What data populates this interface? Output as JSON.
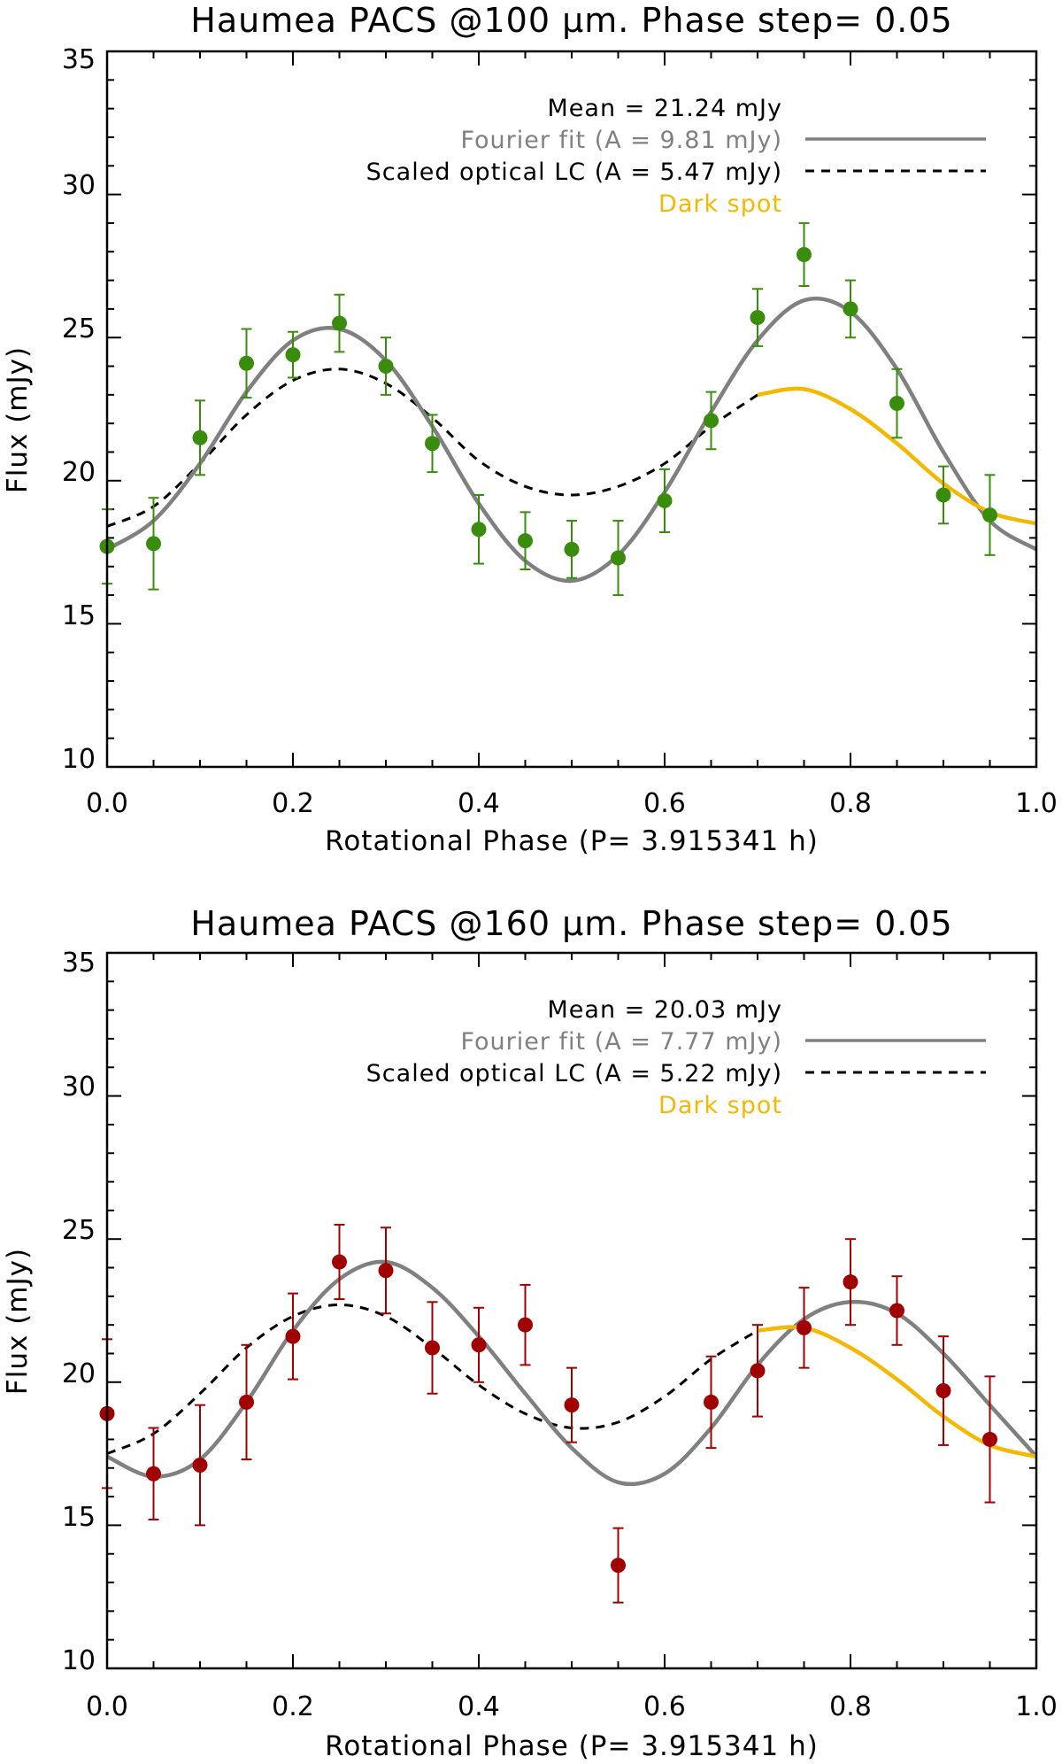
{
  "colors": {
    "axis": "#000000",
    "fourier": "#808080",
    "optical": "#000000",
    "dark_spot": "#f5b800",
    "points_100": "#3a8c0c",
    "points_160": "#a00000"
  },
  "chart_data": [
    {
      "type": "scatter",
      "title": "Haumea PACS @100 μm. Phase step= 0.05",
      "xlabel": "Rotational Phase (P= 3.915341 h)",
      "ylabel": "Flux (mJy)",
      "xlim": [
        0,
        1
      ],
      "ylim": [
        10,
        35
      ],
      "xticks": [
        "0.0",
        "0.2",
        "0.4",
        "0.6",
        "0.8",
        "1.0"
      ],
      "yticks": [
        "10",
        "15",
        "20",
        "25",
        "30",
        "35"
      ],
      "legend": {
        "position": "top-right",
        "mean": "Mean = 21.24 mJy",
        "fourier": "Fourier fit (A = 9.81 mJy)",
        "optical": "Scaled optical LC (A = 5.47 mJy)",
        "dark_spot": "Dark spot"
      },
      "points": {
        "x": [
          0.0,
          0.05,
          0.1,
          0.15,
          0.2,
          0.25,
          0.3,
          0.35,
          0.4,
          0.45,
          0.5,
          0.55,
          0.6,
          0.65,
          0.7,
          0.75,
          0.8,
          0.85,
          0.9,
          0.95
        ],
        "y": [
          17.7,
          17.8,
          21.5,
          24.1,
          24.4,
          25.5,
          24.0,
          21.3,
          18.3,
          17.9,
          17.6,
          17.3,
          19.3,
          22.1,
          25.7,
          27.9,
          26.0,
          22.7,
          19.5,
          18.8
        ],
        "err": [
          1.3,
          1.6,
          1.3,
          1.2,
          0.8,
          1.0,
          1.0,
          1.0,
          1.2,
          1.0,
          1.0,
          1.3,
          1.1,
          1.0,
          1.0,
          1.1,
          1.0,
          1.2,
          1.0,
          1.4
        ]
      },
      "fourier_fit": {
        "x": [
          0.0,
          0.05,
          0.1,
          0.15,
          0.2,
          0.25,
          0.3,
          0.35,
          0.4,
          0.45,
          0.5,
          0.55,
          0.6,
          0.65,
          0.7,
          0.75,
          0.8,
          0.85,
          0.9,
          0.95,
          1.0
        ],
        "y": [
          17.6,
          18.6,
          20.6,
          23.1,
          24.9,
          25.3,
          24.2,
          21.9,
          19.2,
          17.2,
          16.5,
          17.4,
          19.6,
          22.4,
          24.9,
          26.3,
          25.9,
          23.9,
          21.0,
          18.6,
          17.6
        ]
      },
      "optical_lc": {
        "x": [
          0.0,
          0.05,
          0.1,
          0.15,
          0.2,
          0.25,
          0.3,
          0.35,
          0.4,
          0.45,
          0.5,
          0.55,
          0.6,
          0.65,
          0.7
        ],
        "y": [
          18.4,
          19.1,
          20.6,
          22.3,
          23.5,
          23.9,
          23.4,
          22.2,
          20.7,
          19.8,
          19.5,
          19.8,
          20.6,
          21.9,
          23.0
        ]
      },
      "dark_spot_curve": {
        "x": [
          0.7,
          0.75,
          0.8,
          0.85,
          0.9,
          0.95,
          1.0
        ],
        "y": [
          23.0,
          23.2,
          22.5,
          21.3,
          19.9,
          18.9,
          18.5
        ]
      }
    },
    {
      "type": "scatter",
      "title": "Haumea PACS @160 μm. Phase step= 0.05",
      "xlabel": "Rotational Phase (P= 3.915341 h)",
      "ylabel": "Flux (mJy)",
      "xlim": [
        0,
        1
      ],
      "ylim": [
        10,
        35
      ],
      "xticks": [
        "0.0",
        "0.2",
        "0.4",
        "0.6",
        "0.8",
        "1.0"
      ],
      "yticks": [
        "10",
        "15",
        "20",
        "25",
        "30",
        "35"
      ],
      "legend": {
        "position": "top-right",
        "mean": "Mean = 20.03 mJy",
        "fourier": "Fourier fit (A = 7.77 mJy)",
        "optical": "Scaled optical LC (A = 5.22 mJy)",
        "dark_spot": "Dark spot"
      },
      "points": {
        "x": [
          0.0,
          0.05,
          0.1,
          0.15,
          0.2,
          0.25,
          0.3,
          0.35,
          0.4,
          0.45,
          0.5,
          0.55,
          0.65,
          0.7,
          0.75,
          0.8,
          0.85,
          0.9,
          0.95
        ],
        "y": [
          18.9,
          16.8,
          17.1,
          19.3,
          21.6,
          24.2,
          23.9,
          21.2,
          21.3,
          22.0,
          19.2,
          13.6,
          19.3,
          20.4,
          21.9,
          23.5,
          22.5,
          19.7,
          18.0
        ],
        "err": [
          2.6,
          1.6,
          2.1,
          2.0,
          1.5,
          1.3,
          1.5,
          1.6,
          1.3,
          1.4,
          1.3,
          1.3,
          1.6,
          1.6,
          1.4,
          1.5,
          1.2,
          1.9,
          2.2
        ]
      },
      "fourier_fit": {
        "x": [
          0.0,
          0.05,
          0.1,
          0.15,
          0.2,
          0.25,
          0.3,
          0.35,
          0.4,
          0.45,
          0.5,
          0.55,
          0.6,
          0.65,
          0.7,
          0.75,
          0.8,
          0.85,
          0.9,
          0.95,
          1.0
        ],
        "y": [
          17.4,
          16.7,
          17.3,
          19.3,
          21.8,
          23.6,
          24.2,
          23.3,
          21.6,
          19.6,
          17.7,
          16.5,
          16.8,
          18.4,
          20.6,
          22.2,
          22.8,
          22.4,
          21.0,
          19.2,
          17.4
        ]
      },
      "optical_lc": {
        "x": [
          0.0,
          0.05,
          0.1,
          0.15,
          0.2,
          0.25,
          0.3,
          0.35,
          0.4,
          0.45,
          0.5,
          0.55,
          0.6,
          0.65,
          0.7
        ],
        "y": [
          17.5,
          18.2,
          19.6,
          21.2,
          22.3,
          22.7,
          22.3,
          21.2,
          19.9,
          18.9,
          18.4,
          18.6,
          19.5,
          20.8,
          21.8
        ]
      },
      "dark_spot_curve": {
        "x": [
          0.7,
          0.75,
          0.8,
          0.85,
          0.9,
          0.95,
          1.0
        ],
        "y": [
          21.8,
          21.9,
          21.2,
          20.1,
          18.8,
          17.8,
          17.4
        ]
      }
    }
  ]
}
